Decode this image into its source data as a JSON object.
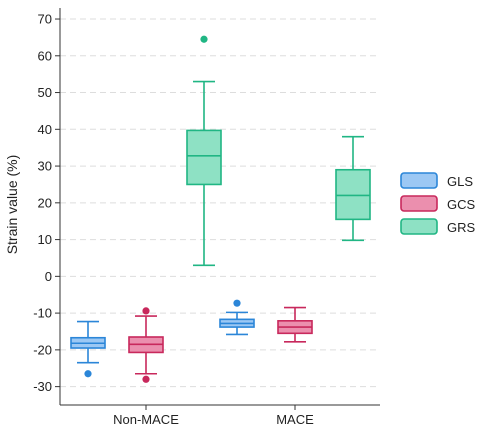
{
  "chart_data": {
    "type": "boxplot",
    "title": "",
    "xlabel": "",
    "ylabel": "Strain value (%)",
    "ylim": [
      -35,
      73
    ],
    "yticks": [
      -30,
      -20,
      -10,
      0,
      10,
      20,
      30,
      40,
      50,
      60,
      70
    ],
    "grid": "horizontal-dashed",
    "legend_position": "right",
    "categories": [
      "Non-MACE",
      "MACE"
    ],
    "colors": {
      "GLS": {
        "fill": "#9cc8f4",
        "stroke": "#2b86d8"
      },
      "GCS": {
        "fill": "#eb8fae",
        "stroke": "#c8285c"
      },
      "GRS": {
        "fill": "#8ee1c4",
        "stroke": "#20b684"
      }
    },
    "series": [
      {
        "name": "GLS",
        "boxes": [
          {
            "category": "Non-MACE",
            "whisker_low": -23.5,
            "q1": -19.5,
            "median": -18.2,
            "q3": -16.7,
            "whisker_high": -12.3,
            "outliers": [
              -26.5
            ]
          },
          {
            "category": "MACE",
            "whisker_low": -15.8,
            "q1": -13.8,
            "median": -12.8,
            "q3": -11.7,
            "whisker_high": -9.8,
            "outliers": [
              -7.3
            ]
          }
        ]
      },
      {
        "name": "GCS",
        "boxes": [
          {
            "category": "Non-MACE",
            "whisker_low": -26.5,
            "q1": -20.7,
            "median": -18.5,
            "q3": -16.5,
            "whisker_high": -10.8,
            "outliers": [
              -28,
              -9.4
            ]
          },
          {
            "category": "MACE",
            "whisker_low": -17.8,
            "q1": -15.5,
            "median": -13.8,
            "q3": -12.1,
            "whisker_high": -8.5,
            "outliers": []
          }
        ]
      },
      {
        "name": "GRS",
        "boxes": [
          {
            "category": "Non-MACE",
            "whisker_low": 3,
            "q1": 25,
            "median": 32.8,
            "q3": 39.7,
            "whisker_high": 53,
            "outliers": [
              64.5
            ]
          },
          {
            "category": "MACE",
            "whisker_low": 9.8,
            "q1": 15.5,
            "median": 22,
            "q3": 29,
            "whisker_high": 38,
            "outliers": []
          }
        ]
      }
    ]
  }
}
